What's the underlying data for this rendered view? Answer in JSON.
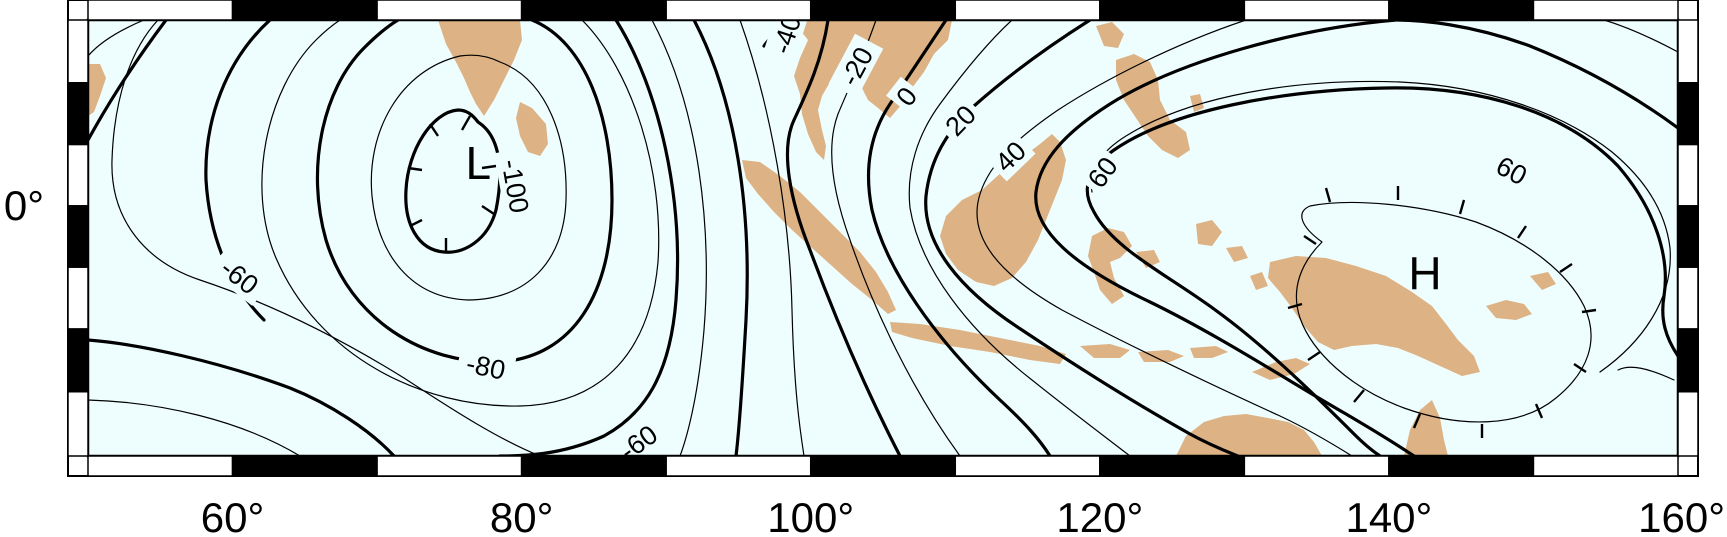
{
  "map": {
    "projection": "mercator",
    "lon_range": [
      50,
      160
    ],
    "lat_range": [
      -20,
      15
    ],
    "frame_style": "checkerboard",
    "frame_interval_deg": 10,
    "ocean_color": "#eefefe",
    "land_color": "#ddb284",
    "contour_color": "#000000"
  },
  "axes": {
    "x_ticks": [
      {
        "lon": 60,
        "label": "60°"
      },
      {
        "lon": 80,
        "label": "80°"
      },
      {
        "lon": 100,
        "label": "100°"
      },
      {
        "lon": 120,
        "label": "120°"
      },
      {
        "lon": 140,
        "label": "140°"
      },
      {
        "lon": 160,
        "label": "160°"
      }
    ],
    "y_ticks": [
      {
        "lat": 0,
        "label": "0°"
      }
    ]
  },
  "contours": {
    "labels": [
      "-100",
      "-80",
      "-60",
      "-60",
      "-40",
      "-20",
      "0",
      "20",
      "40",
      "60",
      "60"
    ],
    "extremes": [
      {
        "label": "L",
        "lon": 77,
        "lat": 3.5
      },
      {
        "label": "H",
        "lon": 142.5,
        "lat": -5.5
      }
    ]
  }
}
